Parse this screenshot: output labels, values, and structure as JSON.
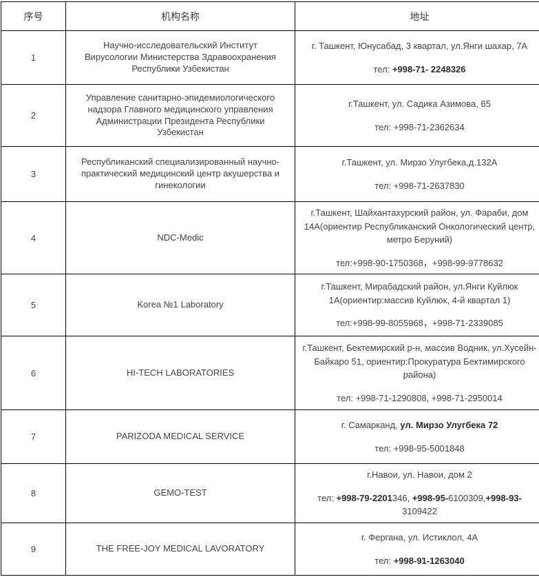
{
  "colors": {
    "border": "#000000",
    "text": "#454545",
    "bold_text": "#2b2b2b",
    "background": "#ffffff"
  },
  "table": {
    "headers": [
      {
        "label": "序号"
      },
      {
        "label": "机构名称"
      },
      {
        "label": "地址"
      }
    ],
    "rows": [
      {
        "num": "1",
        "name": "Научно-исследовательский Институт Вирусологии Министерства Здравоохранения Республики Узбекистан",
        "address": [
          {
            "t": "г. Ташкент, Юнусабад, 3 квартал, ул.Янги шахар, 7А",
            "b": false
          }
        ],
        "phone": [
          {
            "t": "тел: ",
            "b": false
          },
          {
            "t": "+998-71- 2248326",
            "b": true
          }
        ]
      },
      {
        "num": "2",
        "name": "Управление санитарно-эпидемиологического надзора Главного медицинского управления Администрации Президента Республики Узбекистан",
        "address": [
          {
            "t": "г.Ташкент, ул. Садика Азимова, 65",
            "b": false
          }
        ],
        "phone": [
          {
            "t": "тел: +998-71-2362634",
            "b": false
          }
        ]
      },
      {
        "num": "3",
        "name": "Республиканский специализированный научно-практический медицинский центр акушерства и гинекологии",
        "address": [
          {
            "t": "г.Ташкент, ул. Мирзо Улугбека,д.132А",
            "b": false
          }
        ],
        "phone": [
          {
            "t": "тел: +998-71-2637830",
            "b": false
          }
        ]
      },
      {
        "num": "4",
        "name": "NDC-Medic",
        "address": [
          {
            "t": "г.Ташкент, Шайхантахурский район, ул. Фараби, дом 14А(ориентир Республиканский Онкологический центр, метро Беруний)",
            "b": false
          }
        ],
        "phone": [
          {
            "t": "тел:+998-90-1750368，+998-99-9778632",
            "b": false
          }
        ]
      },
      {
        "num": "5",
        "name": "Korea №1 Laboratory",
        "address": [
          {
            "t": "г.Ташкент, Мирабадский район, ул.Янги Куйлюк 1А(ориентир:массив Куйлюк, 4-й квартал 1)",
            "b": false
          }
        ],
        "phone": [
          {
            "t": "тел:+998-99-8055968，+998-71-2339085",
            "b": false
          }
        ]
      },
      {
        "num": "6",
        "name": "HI-TECH LABORATORIES",
        "address": [
          {
            "t": "г.Ташкент, Бектемирский р-н, массив Водник, ул.Хусейн-Байкаро 51, ориентир:Прокуратура Бектимирского района)",
            "b": false
          }
        ],
        "phone": [
          {
            "t": "тел: +998-71-1290808, +998-71-2950014",
            "b": false
          }
        ]
      },
      {
        "num": "7",
        "name": "PARIZODA MEDICAL SERVICE",
        "address": [
          {
            "t": "г. Самарканд, ",
            "b": false
          },
          {
            "t": "ул. Мирзо Улугбека 72",
            "b": true
          }
        ],
        "phone": [
          {
            "t": "тел: +998-95-5001848",
            "b": false
          }
        ]
      },
      {
        "num": "8",
        "name": "GEMO-TEST",
        "address": [
          {
            "t": "г.Навои, ул. Навои, дом 2",
            "b": false
          }
        ],
        "phone": [
          {
            "t": "тел: ",
            "b": false
          },
          {
            "t": "+998-79-2201",
            "b": true
          },
          {
            "t": "346, ",
            "b": false
          },
          {
            "t": "+998-95-",
            "b": true
          },
          {
            "t": "6100309,",
            "b": false
          },
          {
            "t": "+998-93-",
            "b": true
          },
          {
            "t": "3109422",
            "b": false
          }
        ]
      },
      {
        "num": "9",
        "name": "THE FREE-JOY MEDICAL LAVORATORY",
        "address": [
          {
            "t": "г. Фергана, ул. Истиклол, 4А",
            "b": false
          }
        ],
        "phone": [
          {
            "t": "тел: ",
            "b": false
          },
          {
            "t": "+998-91-1263040",
            "b": true
          }
        ]
      }
    ]
  }
}
